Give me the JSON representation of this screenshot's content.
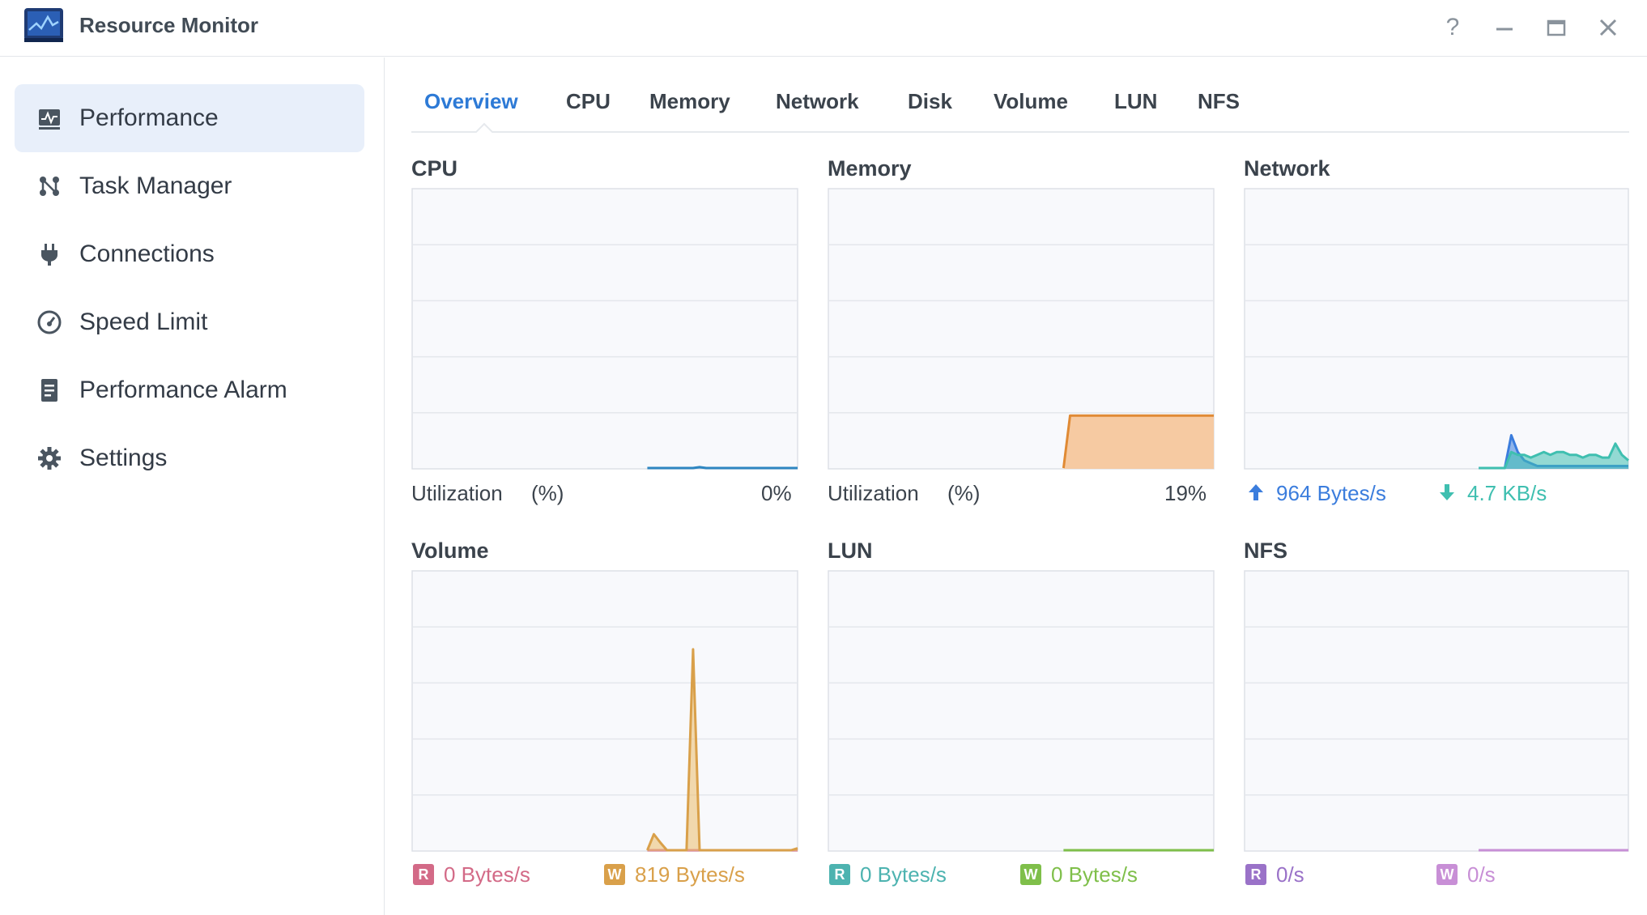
{
  "window": {
    "title": "Resource Monitor",
    "help_label": "?"
  },
  "sidebar": {
    "items": [
      {
        "label": "Performance",
        "icon": "performance-icon",
        "active": true
      },
      {
        "label": "Task Manager",
        "icon": "task-manager-icon",
        "active": false
      },
      {
        "label": "Connections",
        "icon": "plug-icon",
        "active": false
      },
      {
        "label": "Speed Limit",
        "icon": "speedometer-icon",
        "active": false
      },
      {
        "label": "Performance Alarm",
        "icon": "alarm-document-icon",
        "active": false
      },
      {
        "label": "Settings",
        "icon": "gear-icon",
        "active": false
      }
    ]
  },
  "tabs": [
    {
      "label": "Overview",
      "active": true
    },
    {
      "label": "CPU",
      "active": false
    },
    {
      "label": "Memory",
      "active": false
    },
    {
      "label": "Network",
      "active": false
    },
    {
      "label": "Disk",
      "active": false
    },
    {
      "label": "Volume",
      "active": false
    },
    {
      "label": "LUN",
      "active": false
    },
    {
      "label": "NFS",
      "active": false
    }
  ],
  "colors": {
    "accent": "#2d7ad6",
    "cpu": "#2e86c1",
    "memory_line": "#e08a34",
    "memory_fill": "#f6caa2",
    "net_up": "#3b7ddd",
    "net_down": "#3fbfb0",
    "vol_read": "#d36a87",
    "vol_write": "#d9a04a",
    "lun_read": "#4db3b0",
    "lun_write": "#7fbf4a",
    "nfs_read": "#9a72c8",
    "nfs_write": "#c88fd6"
  },
  "panels": {
    "cpu": {
      "title": "CPU",
      "label": "Utilization",
      "unit": "(%)",
      "value": "0%"
    },
    "memory": {
      "title": "Memory",
      "label": "Utilization",
      "unit": "(%)",
      "value": "19%"
    },
    "network": {
      "title": "Network",
      "up_value": "964 Bytes/s",
      "down_value": "4.7 KB/s"
    },
    "volume": {
      "title": "Volume",
      "read_letter": "R",
      "read_value": "0 Bytes/s",
      "write_letter": "W",
      "write_value": "819 Bytes/s"
    },
    "lun": {
      "title": "LUN",
      "read_letter": "R",
      "read_value": "0 Bytes/s",
      "write_letter": "W",
      "write_value": "0 Bytes/s"
    },
    "nfs": {
      "title": "NFS",
      "read_letter": "R",
      "read_value": "0/s",
      "write_letter": "W",
      "write_value": "0/s"
    }
  },
  "chart_data": [
    {
      "type": "area",
      "panel": "cpu",
      "title": "CPU",
      "ylim": [
        0,
        100
      ],
      "series": [
        {
          "values": [
            0,
            0,
            0,
            0,
            0,
            0,
            0,
            0,
            0,
            0,
            0,
            0,
            0,
            0,
            0,
            0,
            0,
            0,
            0,
            0,
            0,
            0,
            0,
            0,
            0,
            0,
            0,
            0,
            0,
            0,
            0,
            0,
            0,
            0,
            0,
            0,
            0,
            0,
            0,
            0,
            0.1,
            0.1,
            0.2,
            0.1,
            0.6,
            0.2,
            0.1,
            0.1,
            0.1,
            0.1,
            0.1,
            0.1,
            0.1,
            0.1,
            0.1,
            0.1,
            0.1,
            0.1,
            0.1,
            0.1
          ]
        }
      ]
    },
    {
      "type": "area",
      "panel": "memory",
      "title": "Memory",
      "ylim": [
        0,
        100
      ],
      "series": [
        {
          "values": [
            0,
            0,
            0,
            0,
            0,
            0,
            0,
            0,
            0,
            0,
            0,
            0,
            0,
            0,
            0,
            0,
            0,
            0,
            0,
            0,
            0,
            0,
            0,
            0,
            0,
            0,
            0,
            0,
            0,
            0,
            0,
            0,
            0,
            0,
            0,
            0,
            0,
            19,
            19,
            19,
            19,
            19,
            19,
            19,
            19,
            19,
            19,
            19,
            19,
            19,
            19,
            19,
            19,
            19,
            19,
            19,
            19,
            19,
            19,
            19
          ]
        }
      ]
    },
    {
      "type": "area",
      "panel": "network",
      "title": "Network",
      "ylim": [
        0,
        100
      ],
      "series": [
        {
          "values": [
            0,
            0,
            0,
            0,
            0,
            0,
            0,
            0,
            0,
            0,
            0,
            0,
            0,
            0,
            0,
            0,
            0,
            0,
            0,
            0,
            0,
            0,
            0,
            0,
            0,
            0,
            0,
            0,
            0,
            0,
            0,
            0,
            0,
            0,
            0,
            0,
            0,
            0,
            0,
            0,
            0,
            12,
            6,
            3,
            2,
            1,
            1,
            1,
            1,
            1,
            1,
            1,
            1,
            1,
            1,
            1,
            1,
            1,
            1,
            1
          ]
        },
        {
          "values": [
            0,
            0,
            0,
            0,
            0,
            0,
            0,
            0,
            0,
            0,
            0,
            0,
            0,
            0,
            0,
            0,
            0,
            0,
            0,
            0,
            0,
            0,
            0,
            0,
            0,
            0,
            0,
            0,
            0,
            0,
            0,
            0,
            0,
            0,
            0,
            0,
            0,
            0,
            0,
            0,
            0,
            6,
            5,
            5,
            4,
            5,
            6,
            5,
            6,
            6,
            5,
            5,
            4,
            5,
            5,
            4,
            4,
            9,
            5,
            3
          ]
        }
      ]
    },
    {
      "type": "area",
      "panel": "volume",
      "title": "Volume",
      "ylim": [
        0,
        100
      ],
      "series": [
        {
          "values": [
            0,
            0,
            0,
            0,
            0,
            0,
            0,
            0,
            0,
            0,
            0,
            0,
            0,
            0,
            0,
            0,
            0,
            0,
            0,
            0,
            0,
            0,
            0,
            0,
            0,
            0,
            0,
            0,
            0,
            0,
            0,
            0,
            0,
            0,
            0,
            0,
            0,
            0,
            0,
            0,
            0,
            0,
            0,
            0,
            0,
            0,
            0,
            0,
            0,
            0,
            0,
            0,
            0,
            0,
            0,
            0,
            0,
            0,
            0,
            0
          ]
        },
        {
          "values": [
            0,
            0,
            0,
            0,
            0,
            0,
            0,
            0,
            0,
            0,
            0,
            0,
            0,
            0,
            0,
            0,
            0,
            0,
            0,
            0,
            0,
            0,
            0,
            0,
            0,
            0,
            0,
            0,
            0,
            0,
            0,
            0,
            0,
            0,
            0,
            0,
            0,
            6,
            3,
            0,
            0,
            0,
            0,
            72,
            0,
            0,
            0,
            0,
            0,
            0,
            0,
            0,
            0,
            0,
            0,
            0,
            0,
            0,
            0,
            1
          ]
        }
      ]
    },
    {
      "type": "area",
      "panel": "lun",
      "title": "LUN",
      "ylim": [
        0,
        100
      ],
      "series": [
        {
          "values": [
            0,
            0,
            0,
            0,
            0,
            0,
            0,
            0,
            0,
            0,
            0,
            0,
            0,
            0,
            0,
            0,
            0,
            0,
            0,
            0,
            0,
            0,
            0,
            0,
            0,
            0,
            0,
            0,
            0,
            0,
            0,
            0,
            0,
            0,
            0,
            0,
            0,
            0,
            0,
            0,
            0,
            0,
            0,
            0,
            0,
            0,
            0,
            0,
            0,
            0,
            0,
            0,
            0,
            0,
            0,
            0,
            0,
            0,
            0,
            0
          ]
        },
        {
          "values": [
            0,
            0,
            0,
            0,
            0,
            0,
            0,
            0,
            0,
            0,
            0,
            0,
            0,
            0,
            0,
            0,
            0,
            0,
            0,
            0,
            0,
            0,
            0,
            0,
            0,
            0,
            0,
            0,
            0,
            0,
            0,
            0,
            0,
            0,
            0,
            0,
            0,
            0,
            0,
            0,
            0,
            0,
            0,
            0,
            0,
            0,
            0,
            0,
            0,
            0,
            0,
            0,
            0,
            0,
            0,
            0,
            0,
            0,
            0,
            0
          ]
        }
      ]
    },
    {
      "type": "area",
      "panel": "nfs",
      "title": "NFS",
      "ylim": [
        0,
        100
      ],
      "series": [
        {
          "values": [
            0,
            0,
            0,
            0,
            0,
            0,
            0,
            0,
            0,
            0,
            0,
            0,
            0,
            0,
            0,
            0,
            0,
            0,
            0,
            0,
            0,
            0,
            0,
            0,
            0,
            0,
            0,
            0,
            0,
            0,
            0,
            0,
            0,
            0,
            0,
            0,
            0,
            0,
            0,
            0,
            0,
            0,
            0,
            0,
            0,
            0,
            0,
            0,
            0,
            0,
            0,
            0,
            0,
            0,
            0,
            0,
            0,
            0,
            0,
            0
          ]
        },
        {
          "values": [
            0,
            0,
            0,
            0,
            0,
            0,
            0,
            0,
            0,
            0,
            0,
            0,
            0,
            0,
            0,
            0,
            0,
            0,
            0,
            0,
            0,
            0,
            0,
            0,
            0,
            0,
            0,
            0,
            0,
            0,
            0,
            0,
            0,
            0,
            0,
            0,
            0,
            0,
            0,
            0,
            0,
            0,
            0,
            0,
            0,
            0,
            0,
            0,
            0,
            0,
            0,
            0,
            0,
            0,
            0,
            0,
            0,
            0,
            0,
            0
          ]
        }
      ]
    }
  ]
}
